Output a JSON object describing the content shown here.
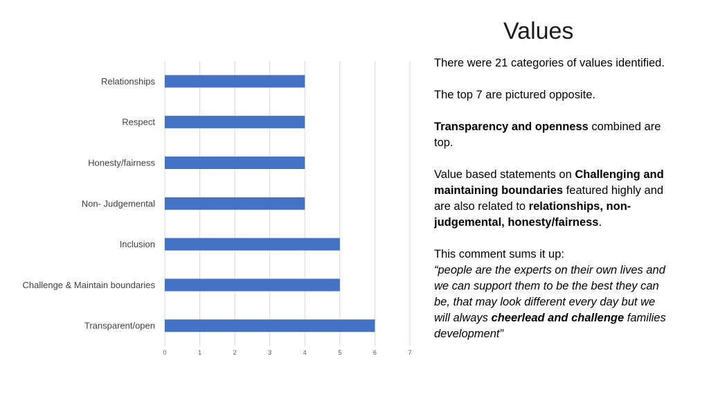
{
  "slide": {
    "title": "Values",
    "paragraphs": [
      [
        {
          "t": "There were 21 categories of values identified."
        }
      ],
      [
        {
          "t": "The top 7 are pictured opposite."
        }
      ],
      [
        {
          "t": "Transparency and openness",
          "b": true
        },
        {
          "t": " combined are top."
        }
      ],
      [
        {
          "t": "Value based statements on "
        },
        {
          "t": "Challenging and maintaining boundaries",
          "b": true
        },
        {
          "t": " featured highly and are also related to "
        },
        {
          "t": "relationships, non-judgemental, honesty/fairness",
          "b": true
        },
        {
          "t": "."
        }
      ],
      [
        {
          "t": "This comment sums it up:"
        },
        {
          "br": true
        },
        {
          "t": "“people are the experts on their own lives and we can support them to be the best they can be, that may look different every day but we will always ",
          "i": true
        },
        {
          "t": "cheerlead and challenge",
          "i": true,
          "b": true
        },
        {
          "t": " families development”",
          "i": true
        }
      ]
    ]
  },
  "chart_data": {
    "type": "bar",
    "orientation": "horizontal",
    "categories": [
      "Relationships",
      "Respect",
      "Honesty/fairness",
      "Non- Judgemental",
      "Inclusion",
      "Challenge & Maintain boundaries",
      "Transparent/open"
    ],
    "values": [
      4,
      4,
      4,
      4,
      5,
      5,
      6
    ],
    "xlim": [
      0,
      7
    ],
    "xticks": [
      0,
      1,
      2,
      3,
      4,
      5,
      6,
      7
    ],
    "grid": true,
    "bar_color": "#4472c4",
    "grid_color": "#d9d9d9",
    "title": "",
    "xlabel": "",
    "ylabel": ""
  }
}
